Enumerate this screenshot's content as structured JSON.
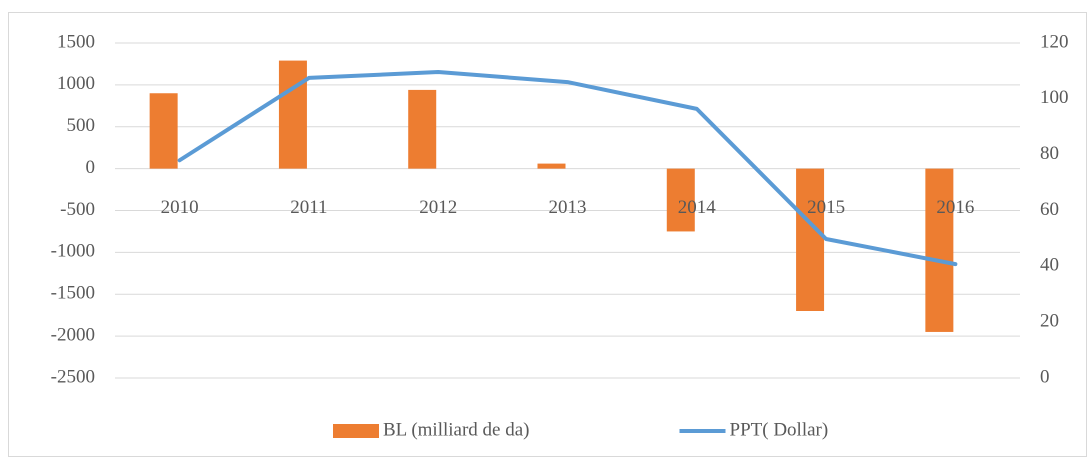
{
  "chart_data": {
    "type": "bar_line",
    "categories": [
      "2010",
      "2011",
      "2012",
      "2013",
      "2014",
      "2015",
      "2016"
    ],
    "series": [
      {
        "name": "BL (milliard de da)",
        "type": "bar",
        "color": "#ED7D31",
        "values": [
          900,
          1290,
          940,
          60,
          -750,
          -1700,
          -1950
        ]
      },
      {
        "name": "PPT( Dollar)",
        "type": "line",
        "axis": "y2",
        "color": "#5B9BD5",
        "values": [
          78,
          107.5,
          109.6,
          106,
          96.4,
          49.8,
          40.8
        ]
      }
    ],
    "ylim": [
      -2500,
      1500
    ],
    "yticks": [
      -2500,
      -2000,
      -1500,
      -1000,
      -500,
      0,
      500,
      1000,
      1500
    ],
    "y2lim": [
      0,
      120
    ],
    "y2ticks": [
      0,
      20,
      40,
      60,
      80,
      100,
      120
    ],
    "grid": true,
    "legend": "bottom"
  }
}
